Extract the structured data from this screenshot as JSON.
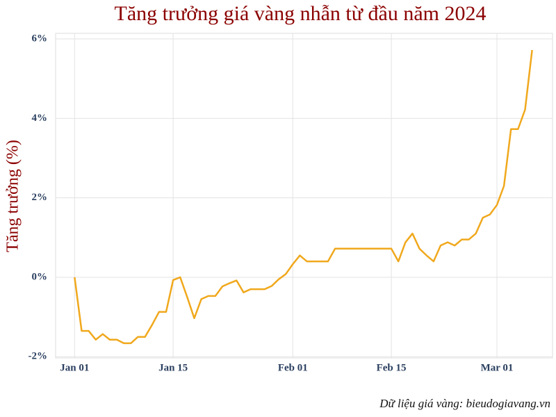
{
  "chart_data": {
    "type": "line",
    "title": "Tăng trưởng giá vàng nhẫn từ đầu năm 2024",
    "y_label": "Tăng trưởng (%)",
    "source": "Dữ liệu giá vàng: bieudogiavang.vn",
    "x": [
      "Jan 01",
      "Jan 02",
      "Jan 03",
      "Jan 04",
      "Jan 05",
      "Jan 06",
      "Jan 07",
      "Jan 08",
      "Jan 09",
      "Jan 10",
      "Jan 11",
      "Jan 12",
      "Jan 13",
      "Jan 14",
      "Jan 15",
      "Jan 16",
      "Jan 17",
      "Jan 18",
      "Jan 19",
      "Jan 20",
      "Jan 21",
      "Jan 22",
      "Jan 23",
      "Jan 24",
      "Jan 25",
      "Jan 26",
      "Jan 27",
      "Jan 28",
      "Jan 29",
      "Jan 30",
      "Jan 31",
      "Feb 01",
      "Feb 02",
      "Feb 03",
      "Feb 04",
      "Feb 05",
      "Feb 06",
      "Feb 07",
      "Feb 08",
      "Feb 09",
      "Feb 10",
      "Feb 11",
      "Feb 12",
      "Feb 13",
      "Feb 14",
      "Feb 15",
      "Feb 16",
      "Feb 17",
      "Feb 18",
      "Feb 19",
      "Feb 20",
      "Feb 21",
      "Feb 22",
      "Feb 23",
      "Feb 24",
      "Feb 25",
      "Feb 26",
      "Feb 27",
      "Feb 28",
      "Feb 29",
      "Mar 01",
      "Mar 02",
      "Mar 03",
      "Mar 04",
      "Mar 05",
      "Mar 06"
    ],
    "series": [
      {
        "name": "Tăng trưởng",
        "color": "#f0a81c",
        "values": [
          0,
          -1.35,
          -1.35,
          -1.57,
          -1.43,
          -1.57,
          -1.57,
          -1.66,
          -1.66,
          -1.5,
          -1.5,
          -1.2,
          -0.87,
          -0.87,
          -0.07,
          0,
          -0.5,
          -1.03,
          -0.55,
          -0.47,
          -0.47,
          -0.23,
          -0.15,
          -0.08,
          -0.38,
          -0.3,
          -0.3,
          -0.3,
          -0.22,
          -0.05,
          0.08,
          0.33,
          0.55,
          0.4,
          0.4,
          0.4,
          0.4,
          0.72,
          0.72,
          0.72,
          0.72,
          0.72,
          0.72,
          0.72,
          0.72,
          0.72,
          0.4,
          0.88,
          1.1,
          0.72,
          0.55,
          0.4,
          0.8,
          0.88,
          0.8,
          0.95,
          0.95,
          1.1,
          1.5,
          1.58,
          1.82,
          2.3,
          3.73,
          3.73,
          4.22,
          5.72
        ]
      }
    ],
    "xticks": [
      "Jan 01",
      "Jan 15",
      "Feb 01",
      "Feb 15",
      "Mar 01"
    ],
    "ylim": [
      -2.03,
      6.14
    ],
    "yticks": [
      {
        "value": -2,
        "label": "-2%"
      },
      {
        "value": 0,
        "label": "0%"
      },
      {
        "value": 2,
        "label": "2%"
      },
      {
        "value": 4,
        "label": "4%"
      },
      {
        "value": 6,
        "label": "6%"
      }
    ],
    "grid": true
  }
}
